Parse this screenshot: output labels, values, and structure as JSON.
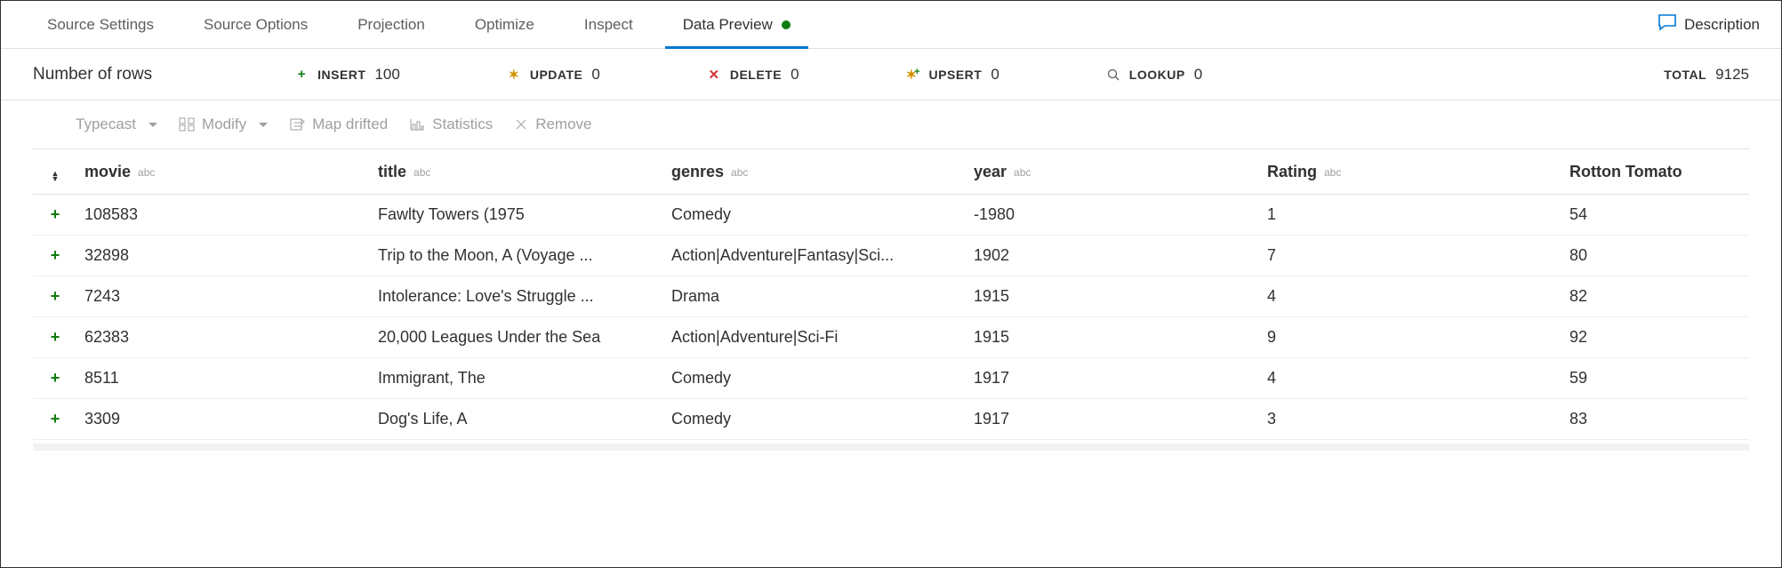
{
  "tabs": {
    "items": [
      {
        "label": "Source Settings",
        "active": false
      },
      {
        "label": "Source Options",
        "active": false
      },
      {
        "label": "Projection",
        "active": false
      },
      {
        "label": "Optimize",
        "active": false
      },
      {
        "label": "Inspect",
        "active": false
      },
      {
        "label": "Data Preview",
        "active": true,
        "indicator": true
      }
    ],
    "description_label": "Description"
  },
  "stats": {
    "rows_label": "Number of rows",
    "insert": {
      "label": "INSERT",
      "value": "100"
    },
    "update": {
      "label": "UPDATE",
      "value": "0"
    },
    "delete": {
      "label": "DELETE",
      "value": "0"
    },
    "upsert": {
      "label": "UPSERT",
      "value": "0"
    },
    "lookup": {
      "label": "LOOKUP",
      "value": "0"
    },
    "total": {
      "label": "TOTAL",
      "value": "9125"
    }
  },
  "toolbar": {
    "typecast": "Typecast",
    "modify": "Modify",
    "map_drifted": "Map drifted",
    "statistics": "Statistics",
    "remove": "Remove"
  },
  "table": {
    "type_badge": "abc",
    "columns": [
      "movie",
      "title",
      "genres",
      "year",
      "Rating",
      "Rotton Tomato"
    ],
    "rows": [
      {
        "movie": "108583",
        "title": "Fawlty Towers (1975",
        "genres": "Comedy",
        "year": "-1980",
        "rating": "1",
        "rt": "54"
      },
      {
        "movie": "32898",
        "title": "Trip to the Moon, A (Voyage ...",
        "genres": "Action|Adventure|Fantasy|Sci...",
        "year": "1902",
        "rating": "7",
        "rt": "80"
      },
      {
        "movie": "7243",
        "title": "Intolerance: Love's Struggle ...",
        "genres": "Drama",
        "year": "1915",
        "rating": "4",
        "rt": "82"
      },
      {
        "movie": "62383",
        "title": "20,000 Leagues Under the Sea",
        "genres": "Action|Adventure|Sci-Fi",
        "year": "1915",
        "rating": "9",
        "rt": "92"
      },
      {
        "movie": "8511",
        "title": "Immigrant, The",
        "genres": "Comedy",
        "year": "1917",
        "rating": "4",
        "rt": "59"
      },
      {
        "movie": "3309",
        "title": "Dog's Life, A",
        "genres": "Comedy",
        "year": "1917",
        "rating": "3",
        "rt": "83"
      }
    ]
  },
  "colors": {
    "accent": "#0078d4",
    "success": "#107c10",
    "warning": "#d29200",
    "danger": "#d13438",
    "muted": "#a19f9d",
    "border": "#e1e1e1"
  }
}
